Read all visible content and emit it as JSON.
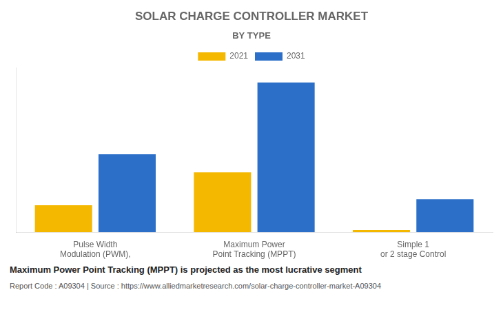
{
  "chart_data": {
    "type": "bar",
    "title": "SOLAR CHARGE CONTROLLER MARKET",
    "subtitle": "BY TYPE",
    "categories": [
      "Pulse Width\nModulation (PWM),",
      "Maximum Power\nPoint Tracking (MPPT)",
      "Simple 1\nor 2 stage Control"
    ],
    "series": [
      {
        "name": "2021",
        "color": "#F5B800",
        "values": [
          18,
          40,
          1.5
        ]
      },
      {
        "name": "2031",
        "color": "#2B6FC8",
        "values": [
          52,
          100,
          22
        ]
      }
    ],
    "ylim": [
      0,
      110
    ],
    "grid": false,
    "tick_labels": "x",
    "legend": "top",
    "annotations": [
      "Maximum Power Point Tracking (MPPT) is projected as the most lucrative segment",
      "Report Code : A09304  |  Source : https://www.alliedmarketresearch.com/solar-charge-controller-market-A09304"
    ]
  }
}
